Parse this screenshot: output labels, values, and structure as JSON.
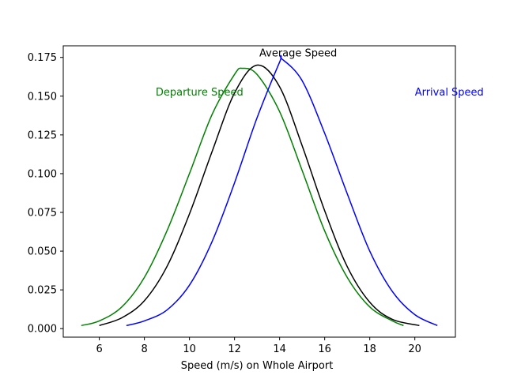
{
  "chart_data": {
    "type": "line",
    "title": "",
    "xlabel": "Speed (m/s) on Whole Airport",
    "ylabel": "",
    "xlim": [
      4.4,
      21.8
    ],
    "ylim": [
      -0.0055,
      0.1825
    ],
    "xticks": [
      6,
      8,
      10,
      12,
      14,
      16,
      18,
      20
    ],
    "yticks": [
      0.0,
      0.025,
      0.05,
      0.075,
      0.1,
      0.125,
      0.15,
      0.175
    ],
    "ytick_labels": [
      "0.000",
      "0.025",
      "0.050",
      "0.075",
      "0.100",
      "0.125",
      "0.150",
      "0.175"
    ],
    "grid": false,
    "legend": "none",
    "series": [
      {
        "name": "Departure Speed",
        "color": "#008000",
        "x": [
          5.2,
          6.0,
          7.0,
          8.0,
          9.0,
          10.0,
          11.0,
          12.0,
          12.35,
          13.0,
          14.0,
          15.0,
          16.0,
          17.0,
          18.0,
          19.0,
          19.5
        ],
        "y": [
          0.002,
          0.005,
          0.014,
          0.033,
          0.063,
          0.1,
          0.138,
          0.164,
          0.168,
          0.164,
          0.14,
          0.102,
          0.063,
          0.033,
          0.014,
          0.005,
          0.002
        ]
      },
      {
        "name": "Average Speed",
        "color": "#000000",
        "x": [
          6.0,
          7.0,
          8.0,
          9.0,
          10.0,
          11.0,
          12.0,
          13.0,
          14.0,
          15.0,
          16.0,
          17.0,
          18.0,
          19.0,
          20.2
        ],
        "y": [
          0.002,
          0.007,
          0.018,
          0.04,
          0.074,
          0.114,
          0.152,
          0.17,
          0.156,
          0.118,
          0.076,
          0.04,
          0.017,
          0.006,
          0.002
        ]
      },
      {
        "name": "Arrival Speed",
        "color": "#0000ff",
        "x": [
          7.2,
          8.0,
          9.0,
          10.0,
          11.0,
          12.0,
          13.0,
          14.0,
          14.1,
          15.0,
          16.0,
          17.0,
          18.0,
          19.0,
          20.0,
          21.0
        ],
        "y": [
          0.002,
          0.005,
          0.012,
          0.028,
          0.056,
          0.094,
          0.136,
          0.172,
          0.174,
          0.16,
          0.126,
          0.087,
          0.05,
          0.024,
          0.009,
          0.002
        ]
      }
    ],
    "annotations": [
      {
        "text": "Departure Speed",
        "x": 8.5,
        "y": 0.1505,
        "color": "#008000"
      },
      {
        "text": "Average Speed",
        "x": 13.1,
        "y": 0.1757,
        "color": "#000000"
      },
      {
        "text": "Arrival Speed",
        "x": 20.0,
        "y": 0.1505,
        "color": "#0000ff"
      }
    ]
  }
}
